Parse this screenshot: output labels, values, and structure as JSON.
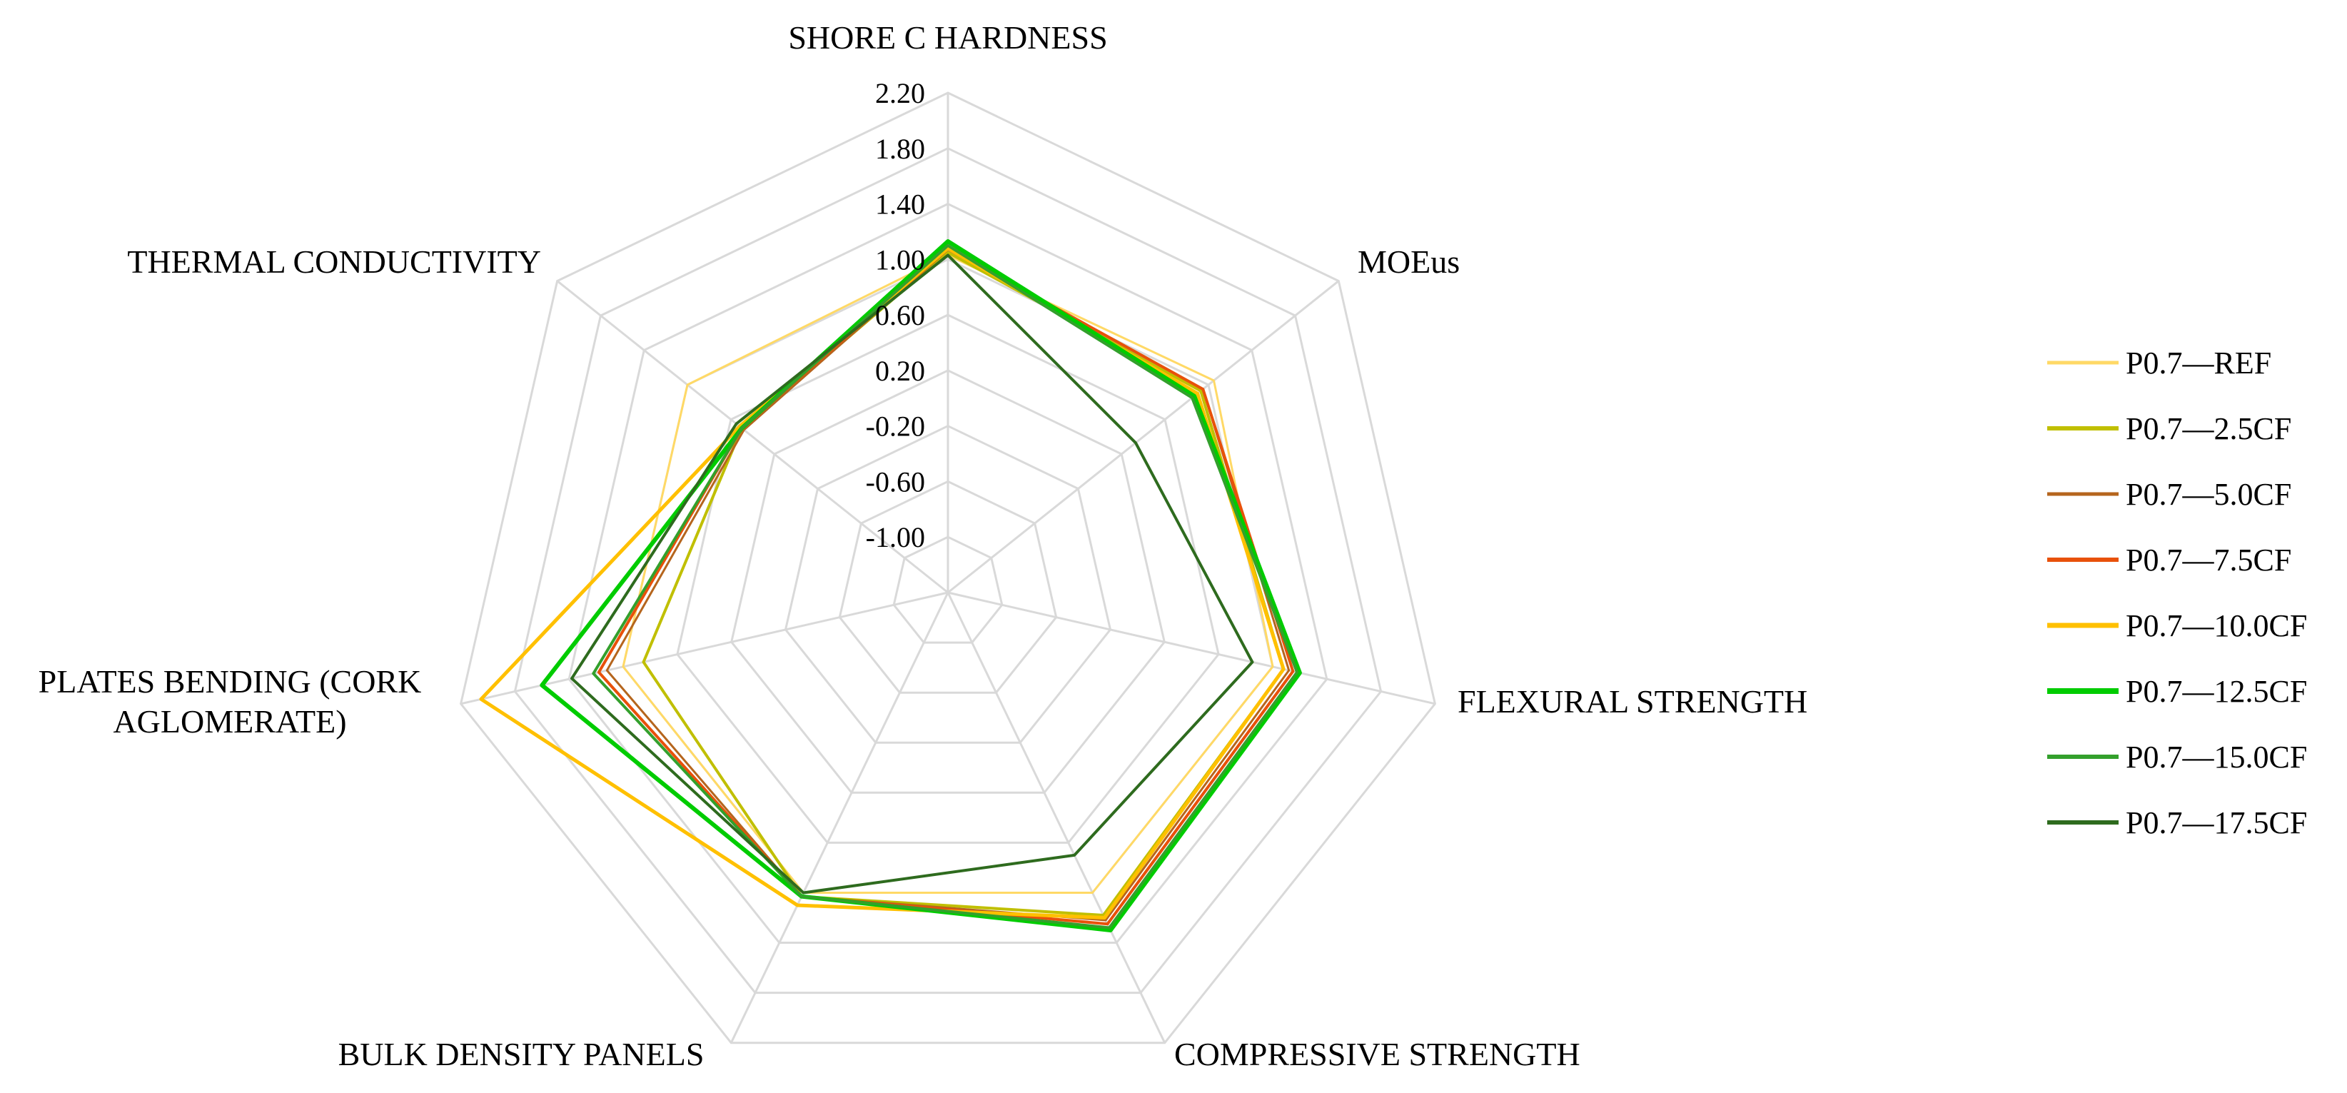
{
  "chart_data": {
    "type": "radar",
    "axes": [
      "SHORE C HARDNESS",
      "MOEus",
      "FLEXURAL STRENGTH",
      "COMPRESSIVE STRENGTH",
      "BULK DENSITY PANELS",
      "PLATES BENDING (CORK AGLOMERATE)",
      "THERMAL CONDUCTIVITY"
    ],
    "axis_label_lines": [
      [
        "SHORE C HARDNESS"
      ],
      [
        "MOEus"
      ],
      [
        "FLEXURAL STRENGTH"
      ],
      [
        "COMPRESSIVE STRENGTH"
      ],
      [
        "BULK DENSITY PANELS"
      ],
      [
        "PLATES BENDING (CORK",
        "AGLOMERATE)"
      ],
      [
        "THERMAL CONDUCTIVITY"
      ]
    ],
    "ticks": [
      "2.20",
      "1.80",
      "1.40",
      "1.00",
      "0.60",
      "0.20",
      "-0.20",
      "-0.60",
      "-1.00"
    ],
    "range": [
      -1.4,
      2.2
    ],
    "legend_position": "right",
    "series": [
      {
        "name": "P0.7—REF",
        "color": "#ffd966",
        "width": 3,
        "values": [
          1.03,
          1.05,
          1.0,
          1.0,
          1.0,
          1.0,
          1.0
        ]
      },
      {
        "name": "P0.7—2.5CF",
        "color": "#c0bf00",
        "width": 4,
        "values": [
          1.05,
          0.93,
          1.08,
          1.18,
          1.03,
          0.85,
          0.5
        ]
      },
      {
        "name": "P0.7—5.0CF",
        "color": "#b5651d",
        "width": 3,
        "values": [
          1.07,
          0.95,
          1.12,
          1.22,
          1.03,
          1.12,
          0.48
        ]
      },
      {
        "name": "P0.7—7.5CF",
        "color": "#e8510a",
        "width": 4,
        "values": [
          1.08,
          0.95,
          1.15,
          1.25,
          1.03,
          1.18,
          0.5
        ]
      },
      {
        "name": "P0.7—10.0CF",
        "color": "#ffc000",
        "width": 5,
        "values": [
          1.08,
          0.9,
          1.08,
          1.2,
          1.1,
          2.05,
          0.52
        ]
      },
      {
        "name": "P0.7—12.5CF",
        "color": "#00cc00",
        "width": 6,
        "values": [
          1.13,
          0.87,
          1.2,
          1.3,
          1.03,
          1.6,
          0.5
        ]
      },
      {
        "name": "P0.7—15.0CF",
        "color": "#33a02c",
        "width": 4,
        "values": [
          1.1,
          0.85,
          1.18,
          1.28,
          1.03,
          1.22,
          0.5
        ]
      },
      {
        "name": "P0.7—17.5CF",
        "color": "#2e6b1e",
        "width": 4,
        "values": [
          1.03,
          0.33,
          0.85,
          0.7,
          1.0,
          1.38,
          0.55
        ]
      }
    ]
  }
}
